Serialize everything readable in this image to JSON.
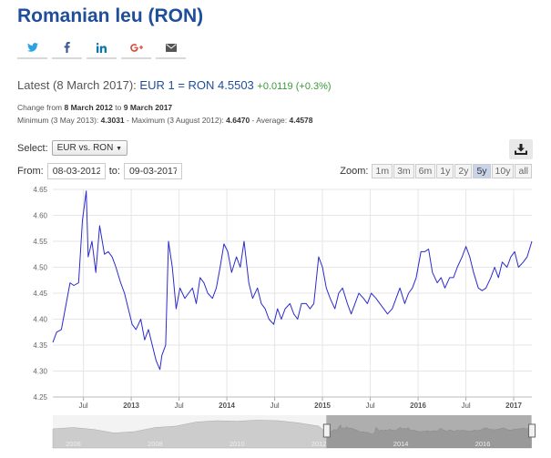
{
  "page": {
    "title": "Romanian leu (RON)",
    "share": [
      {
        "name": "twitter-icon",
        "color": "#2aa3e0"
      },
      {
        "name": "facebook-icon",
        "color": "#3b5998"
      },
      {
        "name": "linkedin-icon",
        "color": "#0e76a8"
      },
      {
        "name": "google-plus-icon",
        "color": "#dd4b39"
      },
      {
        "name": "email-icon",
        "color": "#555555"
      }
    ]
  },
  "latest": {
    "label": "Latest (8 March 2017):",
    "rate": "EUR 1 = RON 4.5503",
    "change": "+0.0119 (+0.3%)"
  },
  "stats": {
    "change_prefix": "Change from",
    "change_from": "8 March 2012",
    "change_to_word": "to",
    "change_to": "9 March 2017",
    "min_label": "Minimum (3 May 2013):",
    "min_value": "4.3031",
    "max_label": "- Maximum (3 August 2012):",
    "max_value": "4.6470",
    "avg_label": "- Average:",
    "avg_value": "4.4578"
  },
  "controls": {
    "select_label": "Select:",
    "select_value": "EUR vs. RON",
    "from_label": "From:",
    "from_value": "08-03-2012",
    "to_label": "to:",
    "to_value": "09-03-2017",
    "zoom_label": "Zoom:",
    "zoom_buttons": [
      "1m",
      "3m",
      "6m",
      "1y",
      "2y",
      "5y",
      "10y",
      "all"
    ],
    "zoom_active": "5y"
  },
  "chart_data": {
    "type": "line",
    "series": [
      {
        "name": "",
        "color": "#2b2bcc"
      }
    ],
    "ylim": [
      4.25,
      4.65
    ],
    "y_ticks": [
      4.25,
      4.3,
      4.35,
      4.4,
      4.45,
      4.5,
      4.55,
      4.6,
      4.65
    ],
    "xlim": [
      2012.18,
      2017.19
    ],
    "x_ticks": [
      {
        "label": "Jul",
        "x": 2012.5
      },
      {
        "label": "2013",
        "x": 2013.0
      },
      {
        "label": "Jul",
        "x": 2013.5
      },
      {
        "label": "2014",
        "x": 2014.0
      },
      {
        "label": "Jul",
        "x": 2014.5
      },
      {
        "label": "2015",
        "x": 2015.0
      },
      {
        "label": "Jul",
        "x": 2015.5
      },
      {
        "label": "2016",
        "x": 2016.0
      },
      {
        "label": "Jul",
        "x": 2016.5
      },
      {
        "label": "2017",
        "x": 2017.0
      }
    ],
    "grid": true,
    "x": [
      2012.18,
      2012.22,
      2012.27,
      2012.32,
      2012.36,
      2012.4,
      2012.45,
      2012.49,
      2012.53,
      2012.55,
      2012.59,
      2012.63,
      2012.67,
      2012.72,
      2012.76,
      2012.8,
      2012.84,
      2012.89,
      2012.93,
      2012.97,
      2013.01,
      2013.05,
      2013.1,
      2013.14,
      2013.18,
      2013.22,
      2013.26,
      2013.3,
      2013.32,
      2013.36,
      2013.39,
      2013.43,
      2013.47,
      2013.51,
      2013.56,
      2013.6,
      2013.64,
      2013.68,
      2013.72,
      2013.76,
      2013.8,
      2013.85,
      2013.89,
      2013.93,
      2013.97,
      2014.01,
      2014.05,
      2014.1,
      2014.14,
      2014.18,
      2014.23,
      2014.27,
      2014.32,
      2014.36,
      2014.4,
      2014.44,
      2014.49,
      2014.53,
      2014.57,
      2014.61,
      2014.66,
      2014.7,
      2014.74,
      2014.78,
      2014.83,
      2014.87,
      2014.91,
      2014.96,
      2015.0,
      2015.04,
      2015.08,
      2015.13,
      2015.17,
      2015.21,
      2015.26,
      2015.3,
      2015.34,
      2015.38,
      2015.43,
      2015.47,
      2015.51,
      2015.56,
      2015.6,
      2015.64,
      2015.68,
      2015.73,
      2015.77,
      2015.81,
      2015.86,
      2015.9,
      2015.94,
      2015.98,
      2016.03,
      2016.07,
      2016.11,
      2016.15,
      2016.2,
      2016.24,
      2016.28,
      2016.33,
      2016.37,
      2016.41,
      2016.46,
      2016.5,
      2016.54,
      2016.58,
      2016.63,
      2016.67,
      2016.71,
      2016.76,
      2016.8,
      2016.84,
      2016.88,
      2016.93,
      2016.97,
      2017.01,
      2017.05,
      2017.1,
      2017.14,
      2017.19
    ],
    "values": [
      4.355,
      4.375,
      4.38,
      4.43,
      4.47,
      4.465,
      4.47,
      4.59,
      4.647,
      4.52,
      4.55,
      4.49,
      4.58,
      4.525,
      4.53,
      4.52,
      4.5,
      4.47,
      4.45,
      4.42,
      4.39,
      4.38,
      4.4,
      4.36,
      4.38,
      4.35,
      4.32,
      4.303,
      4.33,
      4.35,
      4.55,
      4.5,
      4.42,
      4.46,
      4.44,
      4.45,
      4.46,
      4.43,
      4.48,
      4.47,
      4.45,
      4.44,
      4.46,
      4.5,
      4.545,
      4.53,
      4.49,
      4.52,
      4.5,
      4.55,
      4.47,
      4.44,
      4.46,
      4.43,
      4.42,
      4.4,
      4.39,
      4.42,
      4.4,
      4.42,
      4.43,
      4.41,
      4.4,
      4.43,
      4.43,
      4.42,
      4.43,
      4.52,
      4.5,
      4.46,
      4.44,
      4.42,
      4.45,
      4.46,
      4.43,
      4.41,
      4.43,
      4.45,
      4.44,
      4.43,
      4.45,
      4.44,
      4.43,
      4.42,
      4.41,
      4.42,
      4.44,
      4.46,
      4.43,
      4.45,
      4.46,
      4.48,
      4.53,
      4.53,
      4.535,
      4.49,
      4.47,
      4.48,
      4.46,
      4.48,
      4.48,
      4.5,
      4.52,
      4.54,
      4.52,
      4.49,
      4.46,
      4.455,
      4.46,
      4.48,
      4.5,
      4.48,
      4.51,
      4.5,
      4.52,
      4.53,
      4.5,
      4.51,
      4.52,
      4.55
    ]
  },
  "navigator": {
    "labels": [
      {
        "label": "2006",
        "x": 2006.0
      },
      {
        "label": "2008",
        "x": 2008.0
      },
      {
        "label": "2010",
        "x": 2010.0
      },
      {
        "label": "2012",
        "x": 2012.0
      },
      {
        "label": "2014",
        "x": 2014.0
      },
      {
        "label": "2016",
        "x": 2016.0
      }
    ],
    "xlim": [
      2005.5,
      2017.2
    ],
    "selected": [
      2012.18,
      2017.19
    ],
    "fill_color": "#cccccc"
  }
}
